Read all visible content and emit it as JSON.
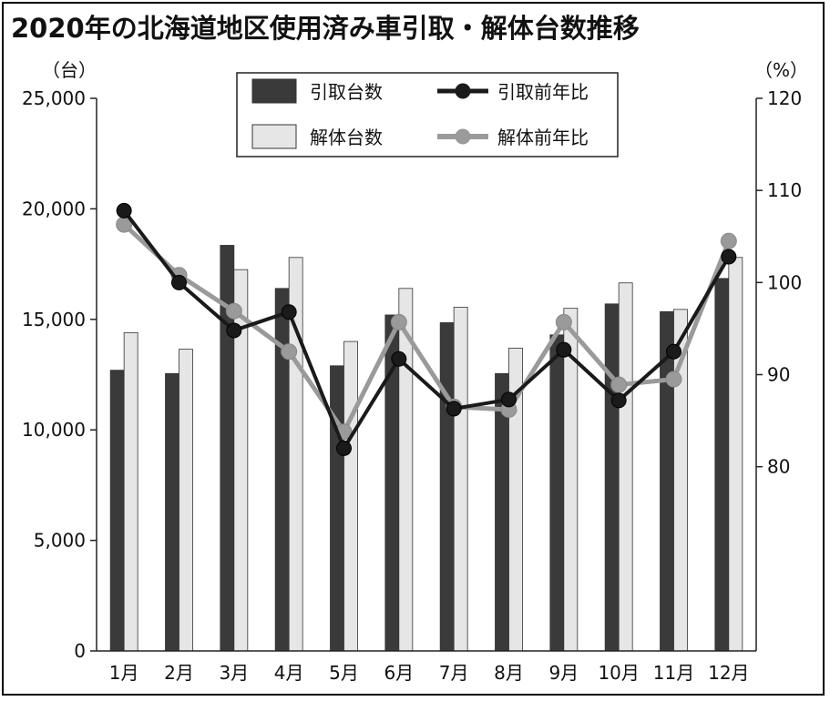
{
  "title": "2020年の北海道地区使用済み車引取・解体台数推移",
  "chart_data": {
    "type": "bar",
    "title": "2020年の北海道地区使用済み車引取・解体台数推移",
    "categories": [
      "1月",
      "2月",
      "3月",
      "4月",
      "5月",
      "6月",
      "7月",
      "8月",
      "9月",
      "10月",
      "11月",
      "12月"
    ],
    "left_axis": {
      "unit": "（台）",
      "ylim": [
        0,
        25000
      ],
      "ticks": [
        "0",
        "5,000",
        "10,000",
        "15,000",
        "20,000",
        "25,000"
      ],
      "tick_values": [
        0,
        5000,
        10000,
        15000,
        20000,
        25000
      ]
    },
    "right_axis": {
      "unit": "（%）",
      "ylim": [
        60,
        120
      ],
      "ticks": [
        "80",
        "90",
        "100",
        "110",
        "120"
      ],
      "tick_values": [
        80,
        90,
        100,
        110,
        120
      ]
    },
    "bar_series": [
      {
        "name": "引取台数",
        "color": "#3a3a3a",
        "values": [
          12700,
          12550,
          18350,
          16400,
          12900,
          15200,
          14850,
          12550,
          14300,
          15700,
          15350,
          16850
        ]
      },
      {
        "name": "解体台数",
        "color": "#e6e6e6",
        "values": [
          14400,
          13650,
          17250,
          17800,
          14000,
          16400,
          15550,
          13700,
          15500,
          16650,
          15450,
          17800
        ]
      }
    ],
    "line_series": [
      {
        "name": "引取前年比",
        "color": "#1a1a1a",
        "values": [
          107.8,
          100.0,
          94.8,
          96.8,
          82.0,
          91.7,
          86.3,
          87.3,
          92.7,
          87.2,
          92.5,
          102.8
        ]
      },
      {
        "name": "解体前年比",
        "color": "#9a9a9a",
        "values": [
          106.3,
          100.8,
          96.9,
          92.5,
          83.8,
          95.7,
          86.5,
          86.2,
          95.7,
          88.9,
          89.5,
          104.5
        ]
      }
    ],
    "legend_position": "top-center",
    "grid": false
  }
}
